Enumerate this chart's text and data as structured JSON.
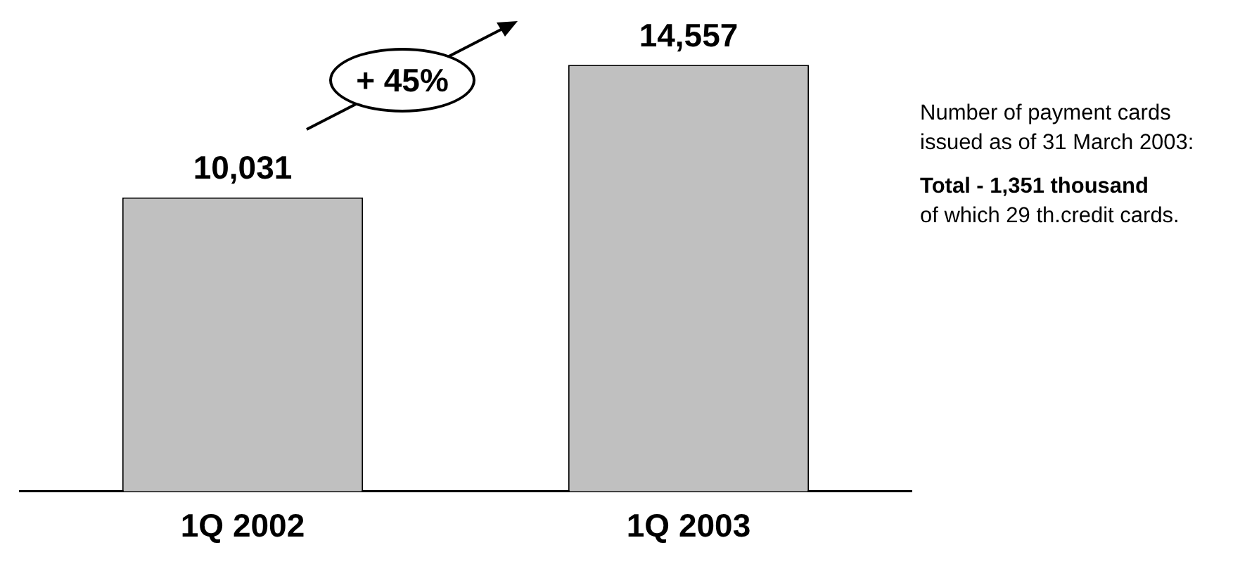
{
  "chart_data": {
    "type": "bar",
    "categories": [
      "1Q 2002",
      "1Q 2003"
    ],
    "values": [
      10031,
      14557
    ],
    "color": "#c0c0c0",
    "data_labels": true,
    "value_labels": [
      "10,031",
      "14,557"
    ],
    "grid": false,
    "legend": false,
    "tick_labels": "x",
    "annotations": [
      "+ 45%",
      "Number of payment cards issued as of 31 March 2003:",
      "Total - 1,351 thousand",
      "of which 29 th.credit cards."
    ]
  }
}
